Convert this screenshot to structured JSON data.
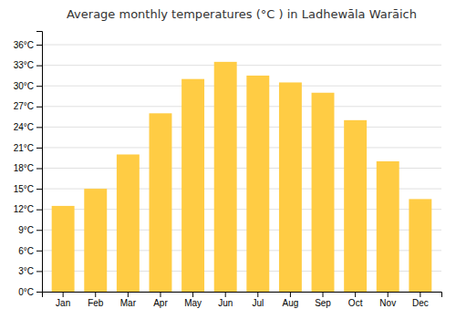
{
  "chart_data": {
    "type": "bar",
    "title": "Average monthly temperatures (°C ) in Ladhewāla Warāich",
    "categories": [
      "Jan",
      "Feb",
      "Mar",
      "Apr",
      "May",
      "Jun",
      "Jul",
      "Aug",
      "Sep",
      "Oct",
      "Nov",
      "Dec"
    ],
    "values": [
      12.5,
      15.0,
      20.0,
      26.0,
      31.0,
      33.5,
      31.5,
      30.5,
      29.0,
      25.0,
      19.0,
      13.5
    ],
    "color": "#FFCC44",
    "ylim": [
      0,
      38
    ],
    "yticks": [
      {
        "value": 0,
        "label": "0°C"
      },
      {
        "value": 3,
        "label": "3°C"
      },
      {
        "value": 6,
        "label": "6°C"
      },
      {
        "value": 9,
        "label": "9°C"
      },
      {
        "value": 12,
        "label": "12°C"
      },
      {
        "value": 15,
        "label": "15°C"
      },
      {
        "value": 18,
        "label": "18°C"
      },
      {
        "value": 21,
        "label": "21°C"
      },
      {
        "value": 24,
        "label": "24°C"
      },
      {
        "value": 27,
        "label": "27°C"
      },
      {
        "value": 30,
        "label": "30°C"
      },
      {
        "value": 33,
        "label": "33°C"
      },
      {
        "value": 36,
        "label": "36°C"
      }
    ],
    "grid": true
  }
}
